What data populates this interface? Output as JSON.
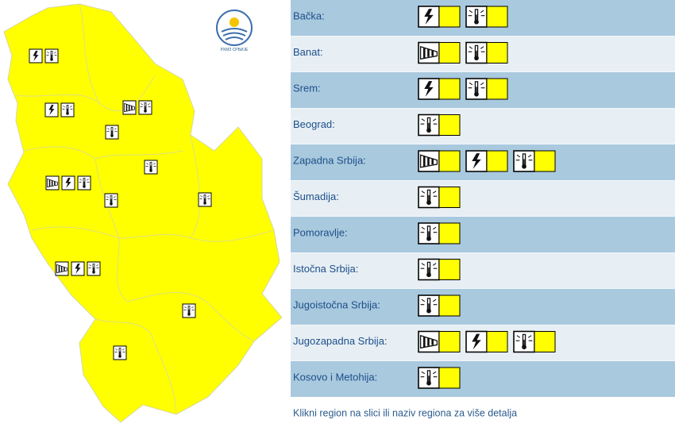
{
  "logo_text": "РХМЗ СРБИЈЕ",
  "warning_color": "#ffff00",
  "regions": [
    {
      "name": "Bačka:",
      "warnings": [
        "thunder",
        "heat"
      ]
    },
    {
      "name": "Banat:",
      "warnings": [
        "wind",
        "heat"
      ]
    },
    {
      "name": "Srem:",
      "warnings": [
        "thunder",
        "heat"
      ]
    },
    {
      "name": "Beograd:",
      "warnings": [
        "heat"
      ]
    },
    {
      "name": "Zapadna Srbija:",
      "warnings": [
        "wind",
        "thunder",
        "heat"
      ]
    },
    {
      "name": "Šumadija:",
      "warnings": [
        "heat"
      ]
    },
    {
      "name": "Pomoravlje:",
      "warnings": [
        "heat"
      ]
    },
    {
      "name": "Istočna Srbija:",
      "warnings": [
        "heat"
      ]
    },
    {
      "name": "Jugoistočna Srbija:",
      "warnings": [
        "heat"
      ]
    },
    {
      "name": "Jugozapadna Srbija:",
      "warnings": [
        "wind",
        "thunder",
        "heat"
      ]
    },
    {
      "name": "Kosovo i Metohija:",
      "warnings": [
        "heat"
      ]
    }
  ],
  "footer": "Klikni region na slici ili naziv regiona za više detalja"
}
